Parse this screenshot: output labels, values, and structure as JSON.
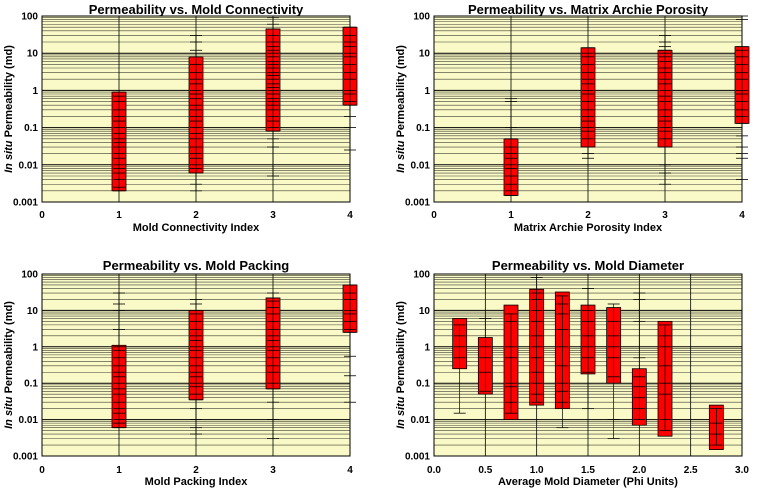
{
  "chart_data": [
    {
      "type": "box-range",
      "title": "Permeability vs. Mold Connectivity",
      "xlabel": "Mold Connectivity Index",
      "ylabel_italic": "In situ",
      "ylabel_rest": " Permeability (md)",
      "xlim": [
        0,
        4
      ],
      "xticks": [
        "0",
        "1",
        "2",
        "3",
        "4"
      ],
      "ylim": [
        0.001,
        100
      ],
      "yscale": "log",
      "yticks": [
        "0.001",
        "0.01",
        "0.1",
        "1",
        "10",
        "100"
      ],
      "plot_bg": "#fafac8",
      "bar_color": "#ff0000",
      "grid": true,
      "bars": [
        {
          "x": 1,
          "low": 0.002,
          "high": 0.9,
          "points": [
            0.002,
            0.0025,
            0.004,
            0.006,
            0.008,
            0.01,
            0.015,
            0.02,
            0.03,
            0.04,
            0.05,
            0.07,
            0.1,
            0.15,
            0.2,
            0.3,
            0.5,
            0.7,
            0.9
          ]
        },
        {
          "x": 2,
          "low": 0.006,
          "high": 8,
          "points": [
            0.002,
            0.003,
            0.006,
            0.008,
            0.01,
            0.015,
            0.02,
            0.03,
            0.05,
            0.07,
            0.1,
            0.15,
            0.2,
            0.3,
            0.4,
            0.6,
            0.8,
            1,
            1.5,
            2,
            3,
            5,
            8,
            12,
            20,
            30
          ]
        },
        {
          "x": 3,
          "low": 0.08,
          "high": 45,
          "points": [
            0.005,
            0.03,
            0.05,
            0.08,
            0.1,
            0.15,
            0.2,
            0.3,
            0.4,
            0.5,
            0.6,
            0.8,
            1,
            1.2,
            1.5,
            2,
            2.5,
            3,
            4,
            5,
            6,
            8,
            10,
            12,
            15,
            20,
            30,
            45,
            60,
            90
          ]
        },
        {
          "x": 4,
          "low": 0.4,
          "high": 50,
          "points": [
            0.025,
            0.1,
            0.2,
            0.4,
            0.5,
            0.8,
            1,
            2,
            3,
            5,
            8,
            10,
            15,
            20,
            30,
            50
          ]
        }
      ]
    },
    {
      "type": "box-range",
      "title": "Permeability vs. Matrix Archie Porosity",
      "xlabel": "Matrix Archie Porosity Index",
      "ylabel_italic": "In situ",
      "ylabel_rest": " Permeability (md)",
      "xlim": [
        0,
        4
      ],
      "xticks": [
        "0",
        "1",
        "2",
        "3",
        "4"
      ],
      "ylim": [
        0.001,
        100
      ],
      "yscale": "log",
      "yticks": [
        "0.001",
        "0.01",
        "0.1",
        "1",
        "10",
        "100"
      ],
      "plot_bg": "#fafac8",
      "bar_color": "#ff0000",
      "grid": true,
      "bars": [
        {
          "x": 1,
          "low": 0.0015,
          "high": 0.05,
          "points": [
            0.0015,
            0.002,
            0.003,
            0.005,
            0.008,
            0.01,
            0.015,
            0.02,
            0.03,
            0.05,
            0.1,
            0.5,
            0.6
          ]
        },
        {
          "x": 2,
          "low": 0.03,
          "high": 14,
          "points": [
            0.015,
            0.02,
            0.03,
            0.05,
            0.08,
            0.1,
            0.15,
            0.2,
            0.3,
            0.5,
            0.8,
            1,
            1.5,
            2,
            3,
            5,
            8,
            10,
            14
          ]
        },
        {
          "x": 3,
          "low": 0.03,
          "high": 12,
          "points": [
            0.003,
            0.006,
            0.01,
            0.03,
            0.05,
            0.08,
            0.1,
            0.15,
            0.2,
            0.3,
            0.5,
            0.7,
            1,
            1.5,
            2,
            3,
            4,
            6,
            8,
            10,
            12,
            15,
            20,
            30
          ]
        },
        {
          "x": 4,
          "low": 0.13,
          "high": 15,
          "points": [
            0.004,
            0.015,
            0.02,
            0.03,
            0.06,
            0.13,
            0.2,
            0.3,
            0.5,
            0.8,
            1,
            2,
            3,
            5,
            8,
            12,
            15,
            80,
            100
          ]
        }
      ]
    },
    {
      "type": "box-range",
      "title": "Permeability vs. Mold Packing",
      "xlabel": "Mold Packing Index",
      "ylabel_italic": "In situ",
      "ylabel_rest": " Permeability (md)",
      "xlim": [
        0,
        4
      ],
      "xticks": [
        "0",
        "1",
        "2",
        "3",
        "4"
      ],
      "ylim": [
        0.001,
        100
      ],
      "yscale": "log",
      "yticks": [
        "0.001",
        "0.01",
        "0.1",
        "1",
        "10",
        "100"
      ],
      "plot_bg": "#fafac8",
      "bar_color": "#ff0000",
      "grid": true,
      "bars": [
        {
          "x": 1,
          "low": 0.006,
          "high": 1.1,
          "points": [
            0.006,
            0.008,
            0.01,
            0.015,
            0.02,
            0.03,
            0.05,
            0.07,
            0.1,
            0.15,
            0.2,
            0.3,
            0.5,
            0.8,
            1,
            3,
            10,
            15,
            30
          ]
        },
        {
          "x": 2,
          "low": 0.035,
          "high": 10,
          "points": [
            0.004,
            0.006,
            0.01,
            0.02,
            0.035,
            0.05,
            0.08,
            0.1,
            0.15,
            0.2,
            0.3,
            0.5,
            0.8,
            1,
            1.5,
            2,
            3,
            5,
            8,
            10,
            15,
            20
          ]
        },
        {
          "x": 3,
          "low": 0.07,
          "high": 22,
          "points": [
            0.003,
            0.01,
            0.03,
            0.07,
            0.1,
            0.2,
            0.3,
            0.5,
            0.8,
            1,
            1.5,
            2,
            3,
            5,
            8,
            12,
            18,
            22,
            30
          ]
        },
        {
          "x": 4,
          "low": 2.5,
          "high": 50,
          "points": [
            0.03,
            0.16,
            0.55,
            2.5,
            3,
            5,
            8,
            10,
            20,
            30,
            50
          ]
        }
      ]
    },
    {
      "type": "box-range",
      "title": "Permeability vs. Mold Diameter",
      "xlabel": "Average Mold Diameter (Phi Units)",
      "ylabel_italic": "In situ",
      "ylabel_rest": " Permeability (md)",
      "xlim": [
        0,
        3
      ],
      "xticks": [
        "0.0",
        "0.5",
        "1.0",
        "1.5",
        "2.0",
        "2.5",
        "3.0"
      ],
      "ylim": [
        0.001,
        100
      ],
      "yscale": "log",
      "yticks": [
        "0.001",
        "0.01",
        "0.1",
        "1",
        "10",
        "100"
      ],
      "plot_bg": "#fafac8",
      "bar_color": "#ff0000",
      "grid": true,
      "bars": [
        {
          "x": 0.25,
          "low": 0.25,
          "high": 6,
          "points": [
            0.015,
            0.5,
            1,
            2,
            4
          ]
        },
        {
          "x": 0.5,
          "low": 0.05,
          "high": 1.8,
          "points": [
            0.06,
            0.2,
            0.5,
            1,
            6
          ]
        },
        {
          "x": 0.75,
          "low": 0.01,
          "high": 14,
          "points": [
            0.015,
            0.03,
            0.08,
            0.1,
            0.5,
            1,
            5,
            8
          ]
        },
        {
          "x": 1.0,
          "low": 0.025,
          "high": 38,
          "points": [
            0.03,
            0.05,
            0.1,
            0.2,
            0.5,
            1,
            2,
            5,
            10,
            20,
            30,
            80
          ]
        },
        {
          "x": 1.25,
          "low": 0.02,
          "high": 32,
          "points": [
            0.006,
            0.03,
            0.06,
            0.1,
            0.3,
            1,
            3,
            8,
            15,
            25
          ]
        },
        {
          "x": 1.5,
          "low": 0.18,
          "high": 14,
          "points": [
            0.02,
            0.2,
            0.5,
            1,
            2,
            5,
            10,
            40
          ]
        },
        {
          "x": 1.75,
          "low": 0.1,
          "high": 12,
          "points": [
            0.003,
            0.01,
            0.15,
            0.5,
            1,
            2,
            5,
            15
          ]
        },
        {
          "x": 2.0,
          "low": 0.007,
          "high": 0.25,
          "points": [
            0.01,
            0.02,
            0.04,
            0.08,
            0.15,
            0.5,
            5,
            20,
            30
          ]
        },
        {
          "x": 2.25,
          "low": 0.0035,
          "high": 5,
          "points": [
            0.005,
            0.01,
            0.05,
            0.1,
            0.3,
            1,
            2,
            4
          ]
        },
        {
          "x": 2.75,
          "low": 0.0015,
          "high": 0.025,
          "points": [
            0.002,
            0.004,
            0.008,
            0.02
          ]
        }
      ]
    }
  ]
}
